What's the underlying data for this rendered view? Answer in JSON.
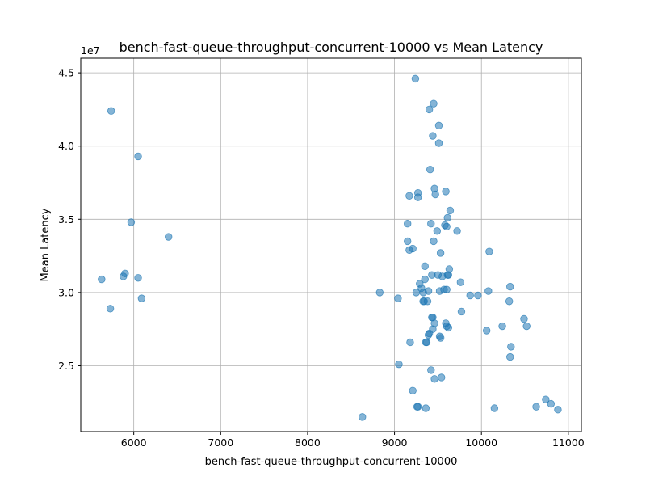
{
  "chart_data": {
    "type": "scatter",
    "title": "bench-fast-queue-throughput-concurrent-10000 vs Mean Latency",
    "xlabel": "bench-fast-queue-throughput-concurrent-10000",
    "ylabel": "Mean Latency",
    "y_offset_label": "1e7",
    "xlim": [
      5390,
      11150
    ],
    "ylim": [
      20500000,
      46000000
    ],
    "x_ticks": [
      6000,
      7000,
      8000,
      9000,
      10000,
      11000
    ],
    "y_ticks": [
      25000000,
      30000000,
      35000000,
      40000000,
      45000000
    ],
    "x_tick_labels": [
      "6000",
      "7000",
      "8000",
      "9000",
      "10000",
      "11000"
    ],
    "y_tick_labels": [
      "2.5",
      "3.0",
      "3.5",
      "4.0",
      "4.5"
    ],
    "grid": true,
    "marker_color": "#1f77b4",
    "marker_alpha": 0.55,
    "series": [
      {
        "points": [
          [
            5740,
            42400000
          ],
          [
            6050,
            39300000
          ],
          [
            5970,
            34800000
          ],
          [
            6400,
            33800000
          ],
          [
            5630,
            30900000
          ],
          [
            5880,
            31100000
          ],
          [
            5900,
            31300000
          ],
          [
            6050,
            31000000
          ],
          [
            6090,
            29600000
          ],
          [
            5730,
            28900000
          ],
          [
            8630,
            21500000
          ],
          [
            8830,
            30000000
          ],
          [
            9040,
            29600000
          ],
          [
            9050,
            25100000
          ],
          [
            9150,
            33500000
          ],
          [
            9150,
            34700000
          ],
          [
            9170,
            32900000
          ],
          [
            9170,
            36600000
          ],
          [
            9180,
            26600000
          ],
          [
            9210,
            33000000
          ],
          [
            9210,
            23300000
          ],
          [
            9240,
            44600000
          ],
          [
            9250,
            30000000
          ],
          [
            9260,
            22200000
          ],
          [
            9270,
            22200000
          ],
          [
            9270,
            36800000
          ],
          [
            9270,
            36500000
          ],
          [
            9290,
            30600000
          ],
          [
            9310,
            30300000
          ],
          [
            9330,
            30000000
          ],
          [
            9330,
            29400000
          ],
          [
            9340,
            29400000
          ],
          [
            9350,
            31800000
          ],
          [
            9350,
            30900000
          ],
          [
            9360,
            22100000
          ],
          [
            9360,
            26600000
          ],
          [
            9370,
            26600000
          ],
          [
            9380,
            29400000
          ],
          [
            9390,
            30100000
          ],
          [
            9390,
            27100000
          ],
          [
            9400,
            27200000
          ],
          [
            9400,
            42500000
          ],
          [
            9410,
            38400000
          ],
          [
            9420,
            24700000
          ],
          [
            9420,
            34700000
          ],
          [
            9430,
            31200000
          ],
          [
            9430,
            28300000
          ],
          [
            9440,
            28300000
          ],
          [
            9440,
            40700000
          ],
          [
            9440,
            27500000
          ],
          [
            9450,
            42900000
          ],
          [
            9450,
            33500000
          ],
          [
            9460,
            24100000
          ],
          [
            9460,
            27900000
          ],
          [
            9460,
            37100000
          ],
          [
            9470,
            36700000
          ],
          [
            9490,
            34200000
          ],
          [
            9500,
            31200000
          ],
          [
            9510,
            41400000
          ],
          [
            9510,
            40200000
          ],
          [
            9520,
            30100000
          ],
          [
            9520,
            27000000
          ],
          [
            9530,
            26900000
          ],
          [
            9530,
            32700000
          ],
          [
            9540,
            24200000
          ],
          [
            9550,
            31100000
          ],
          [
            9570,
            30200000
          ],
          [
            9580,
            34600000
          ],
          [
            9590,
            36900000
          ],
          [
            9590,
            27900000
          ],
          [
            9600,
            30200000
          ],
          [
            9600,
            34500000
          ],
          [
            9600,
            27700000
          ],
          [
            9610,
            31200000
          ],
          [
            9610,
            35100000
          ],
          [
            9620,
            31200000
          ],
          [
            9620,
            27600000
          ],
          [
            9630,
            31600000
          ],
          [
            9640,
            35600000
          ],
          [
            9720,
            34200000
          ],
          [
            9760,
            30700000
          ],
          [
            9770,
            28700000
          ],
          [
            9870,
            29800000
          ],
          [
            9960,
            29800000
          ],
          [
            10060,
            27400000
          ],
          [
            10080,
            30100000
          ],
          [
            10090,
            32800000
          ],
          [
            10150,
            22100000
          ],
          [
            10240,
            27700000
          ],
          [
            10320,
            29400000
          ],
          [
            10330,
            30400000
          ],
          [
            10330,
            25600000
          ],
          [
            10340,
            26300000
          ],
          [
            10490,
            28200000
          ],
          [
            10520,
            27700000
          ],
          [
            10630,
            22200000
          ],
          [
            10740,
            22700000
          ],
          [
            10800,
            22400000
          ],
          [
            10880,
            22000000
          ]
        ]
      }
    ]
  }
}
